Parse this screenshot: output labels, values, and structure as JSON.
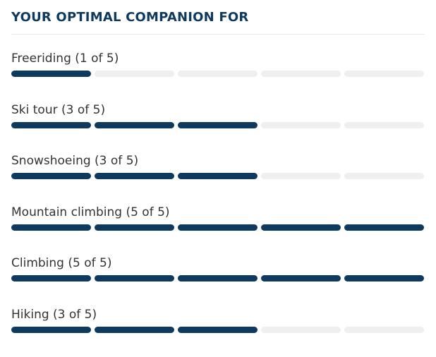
{
  "title": "YOUR OPTIMAL COMPANION FOR",
  "scale_max": 5,
  "colors": {
    "heading": "#0f3a5f",
    "filled": "#0f3a5f",
    "empty": "#efefef",
    "label": "#333333"
  },
  "ratings": [
    {
      "label": "Freeriding (1 of 5)",
      "value": 1
    },
    {
      "label": "Ski tour (3 of 5)",
      "value": 3
    },
    {
      "label": "Snowshoeing (3 of 5)",
      "value": 3
    },
    {
      "label": "Mountain climbing (5 of 5)",
      "value": 5
    },
    {
      "label": "Climbing (5 of 5)",
      "value": 5
    },
    {
      "label": "Hiking (3 of 5)",
      "value": 3
    }
  ]
}
